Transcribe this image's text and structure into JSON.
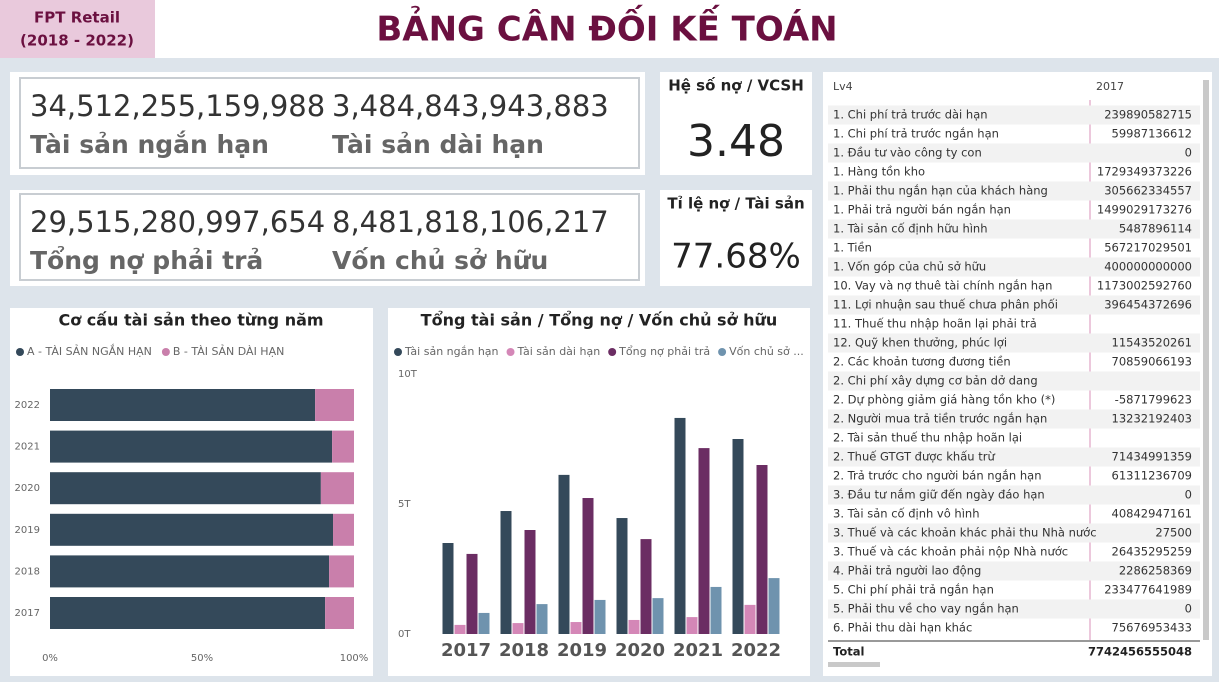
{
  "header": {
    "company": "FPT Retail",
    "period": "(2018 - 2022)",
    "title": "BẢNG CÂN ĐỐI KẾ TOÁN"
  },
  "cards": [
    {
      "value": "34,512,255,159,988",
      "label": "Tài sản ngắn hạn"
    },
    {
      "value": "3,484,843,943,883",
      "label": "Tài sản dài hạn"
    },
    {
      "value": "29,515,280,997,654",
      "label": "Tổng nợ phải trả"
    },
    {
      "value": "8,481,818,106,217",
      "label": "Vốn chủ sở hữu"
    }
  ],
  "ratios": [
    {
      "title": "Hệ số nợ / VCSH",
      "value": "3.48"
    },
    {
      "title": "Tỉ lệ nợ / Tài sản",
      "value": "77.68%"
    }
  ],
  "chart_data": [
    {
      "type": "stacked-barh",
      "title": "Cơ cấu tài sản theo từng năm",
      "categories": [
        "2022",
        "2021",
        "2020",
        "2019",
        "2018",
        "2017"
      ],
      "series": [
        {
          "name": "A - TÀI SẢN NGẮN HẠN",
          "color": "#34495a",
          "values": [
            87.2,
            92.8,
            89.1,
            93.1,
            91.8,
            90.5
          ]
        },
        {
          "name": "B - TÀI SẢN DÀI HẠN",
          "color": "#c97fab",
          "values": [
            12.8,
            7.2,
            10.9,
            6.9,
            8.2,
            9.5
          ]
        }
      ],
      "xlim": [
        0,
        100
      ],
      "xticks": [
        {
          "value": 0,
          "label": "0%"
        },
        {
          "value": 50,
          "label": "50%"
        },
        {
          "value": 100,
          "label": "100%"
        }
      ]
    },
    {
      "type": "grouped-bar",
      "title": "Tổng tài sản / Tổng nợ / Vốn chủ sở hữu",
      "categories": [
        "2017",
        "2018",
        "2019",
        "2020",
        "2021",
        "2022"
      ],
      "series": [
        {
          "name": "Tài sản ngắn hạn",
          "color": "#34495a",
          "values": [
            3.5,
            4.73,
            6.12,
            4.46,
            8.31,
            7.5
          ]
        },
        {
          "name": "Tài sản dài hạn",
          "color": "#d487b7",
          "values": [
            0.35,
            0.42,
            0.46,
            0.54,
            0.65,
            1.12
          ]
        },
        {
          "name": "Tổng nợ phải trả",
          "color": "#6b2d63",
          "values": [
            3.08,
            4.0,
            5.23,
            3.65,
            7.15,
            6.5
          ]
        },
        {
          "name": "Vốn chủ sở ...",
          "color": "#6f93ae",
          "values": [
            0.81,
            1.15,
            1.31,
            1.38,
            1.81,
            2.15
          ]
        }
      ],
      "ylim": [
        0,
        10
      ],
      "yticks": [
        {
          "value": 0,
          "label": "0T"
        },
        {
          "value": 5,
          "label": "5T"
        },
        {
          "value": 10,
          "label": "10T"
        }
      ]
    }
  ],
  "table": {
    "columns": [
      "Lv4",
      "2017"
    ],
    "rows": [
      [
        "1. Chi phí trả trước dài hạn",
        239890582715
      ],
      [
        "1. Chi phí trả trước ngắn hạn",
        59987136612
      ],
      [
        "1. Đầu tư vào công ty con",
        0
      ],
      [
        "1. Hàng tồn kho",
        1729349373226
      ],
      [
        "1. Phải thu ngắn hạn của khách hàng",
        305662334557
      ],
      [
        "1. Phải trả người bán ngắn hạn",
        1499029173276
      ],
      [
        "1. Tài sản cố định hữu hình",
        5487896114
      ],
      [
        "1. Tiền",
        567217029501
      ],
      [
        "1. Vốn góp của chủ sở hữu",
        400000000000
      ],
      [
        "10. Vay và nợ thuê tài chính ngắn hạn",
        1173002592760
      ],
      [
        "11. Lợi nhuận sau thuế chưa phân phối",
        396454372696
      ],
      [
        "11. Thuế thu nhập hoãn lại phải trả",
        null
      ],
      [
        "12. Quỹ khen thưởng, phúc lợi",
        11543520261
      ],
      [
        "2. Các khoản tương đương tiền",
        70859066193
      ],
      [
        "2. Chi phí xây dựng cơ bản dở dang",
        null
      ],
      [
        "2. Dự phòng giảm giá hàng tồn kho (*)",
        -5871799623
      ],
      [
        "2. Người mua trả tiền trước ngắn hạn",
        13232192403
      ],
      [
        "2. Tài sản thuế thu nhập hoãn lại",
        null
      ],
      [
        "2. Thuế GTGT được khấu trừ",
        71434991359
      ],
      [
        "2. Trả trước cho người bán ngắn hạn",
        61311236709
      ],
      [
        "3. Đầu tư nắm giữ đến ngày đáo hạn",
        0
      ],
      [
        "3. Tài sản cố định vô hình",
        40842947161
      ],
      [
        "3. Thuế và các khoản khác phải thu Nhà nước",
        27500
      ],
      [
        "3. Thuế và các khoản phải nộp Nhà nước",
        26435295259
      ],
      [
        "4. Phải trả người lao động",
        2286258369
      ],
      [
        "5. Chi phí phải trả ngắn hạn",
        233477641989
      ],
      [
        "5. Phải thu về cho vay ngắn hạn",
        0
      ],
      [
        "6. Phải thu dài hạn khác",
        75676953433
      ]
    ],
    "total": [
      "Total",
      7742456555048
    ]
  }
}
